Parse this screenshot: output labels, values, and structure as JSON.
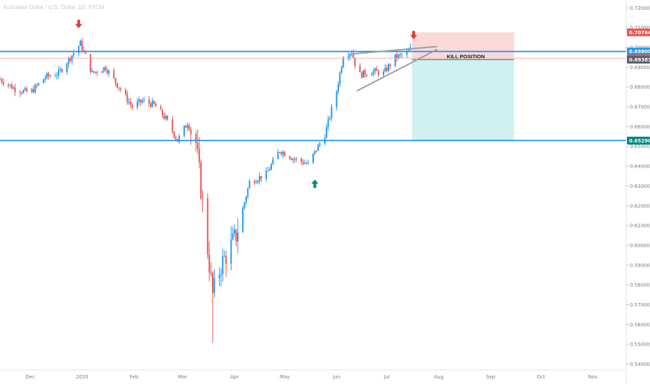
{
  "title": "Australian Dollar / U.S. Dollar, 1D, FXCM",
  "colors": {
    "up": "#2196f3",
    "down": "#ef5350",
    "hline": "#2196f3",
    "stop_zone": "#fbd5d5",
    "target_zone": "#cceeee",
    "entry_line": "#f29b8f",
    "wedge": "#9e9e9e",
    "arrow_down": "#e53935",
    "arrow_up": "#00897b",
    "axis_text": "#787b86"
  },
  "chart_data": {
    "type": "candlestick",
    "symbol": "AUDUSD",
    "ylim": [
      0.537,
      0.724
    ],
    "y_ticks": [
      "0.72000",
      "0.71000",
      "0.70000",
      "0.69000",
      "0.68000",
      "0.67000",
      "0.66000",
      "0.65000",
      "0.64000",
      "0.63000",
      "0.62000",
      "0.61000",
      "0.60000",
      "0.59000",
      "0.58000",
      "0.57000",
      "0.56000",
      "0.55000",
      "0.54000"
    ],
    "x_ticks": [
      "Dec",
      "2020",
      "Feb",
      "Mar",
      "Apr",
      "May",
      "Jun",
      "Jul",
      "Aug",
      "Sep",
      "Oct",
      "Nov"
    ],
    "x_tick_dates": [
      "2019-12-01",
      "2020-01-01",
      "2020-02-01",
      "2020-03-01",
      "2020-04-01",
      "2020-05-01",
      "2020-06-01",
      "2020-07-01",
      "2020-08-01",
      "2020-09-01",
      "2020-10-01",
      "2020-11-01"
    ],
    "x_range": [
      "2019-11-13",
      "2020-11-21"
    ],
    "price_path": [
      [
        "2019-11-13",
        0.684
      ],
      [
        "2019-11-22",
        0.679
      ],
      [
        "2019-12-01",
        0.677
      ],
      [
        "2019-12-10",
        0.685
      ],
      [
        "2019-12-18",
        0.687
      ],
      [
        "2019-12-31",
        0.702
      ],
      [
        "2020-01-07",
        0.687
      ],
      [
        "2020-01-15",
        0.69
      ],
      [
        "2020-01-31",
        0.67
      ],
      [
        "2020-02-06",
        0.673
      ],
      [
        "2020-02-13",
        0.671
      ],
      [
        "2020-02-20",
        0.664
      ],
      [
        "2020-02-27",
        0.653
      ],
      [
        "2020-03-04",
        0.662
      ],
      [
        "2020-03-09",
        0.652
      ],
      [
        "2020-03-13",
        0.621
      ],
      [
        "2020-03-19",
        0.575
      ],
      [
        "2020-03-24",
        0.59
      ],
      [
        "2020-04-02",
        0.605
      ],
      [
        "2020-04-10",
        0.632
      ],
      [
        "2020-04-20",
        0.636
      ],
      [
        "2020-04-28",
        0.648
      ],
      [
        "2020-05-06",
        0.644
      ],
      [
        "2020-05-15",
        0.641
      ],
      [
        "2020-05-25",
        0.656
      ],
      [
        "2020-06-01",
        0.678
      ],
      [
        "2020-06-05",
        0.696
      ],
      [
        "2020-06-10",
        0.698
      ],
      [
        "2020-06-14",
        0.686
      ],
      [
        "2020-06-22",
        0.688
      ],
      [
        "2020-06-29",
        0.687
      ],
      [
        "2020-07-06",
        0.695
      ],
      [
        "2020-07-13",
        0.697
      ],
      [
        "2020-07-15",
        0.699
      ]
    ],
    "key_levels": [
      {
        "label": "0.69800",
        "value": 0.698,
        "color": "#2196f3"
      },
      {
        "label": "0.65300",
        "value": 0.653,
        "color": "#2196f3"
      }
    ],
    "position": {
      "direction": "short",
      "start": "2020-07-16",
      "end": "2020-09-15",
      "stop": 0.70764,
      "entry": 0.69462,
      "target": 0.6529,
      "kill_level": 0.69383,
      "annotation": "KILL POSITION"
    },
    "price_tags": [
      {
        "label": "0.70764",
        "value": 0.70764,
        "color": "#ef5350"
      },
      {
        "label": "0.69800",
        "value": 0.698,
        "color": "#2196f3"
      },
      {
        "label": "0.69462",
        "value": 0.69462,
        "color": "#ef5350"
      },
      {
        "label": "0.69383",
        "value": 0.69383,
        "color": "#5d606b"
      },
      {
        "label": "0.65300",
        "value": 0.653,
        "color": "#2196f3"
      },
      {
        "label": "0.65290",
        "value": 0.6529,
        "color": "#00897b"
      }
    ],
    "wedge_lines": [
      {
        "from": [
          "2020-06-11",
          0.6968
        ],
        "to": [
          "2020-07-31",
          0.7005
        ]
      },
      {
        "from": [
          "2020-06-13",
          0.678
        ],
        "to": [
          "2020-07-31",
          0.699
        ]
      }
    ],
    "arrows": [
      {
        "direction": "down",
        "date": "2019-12-30",
        "price": 0.7115
      },
      {
        "direction": "down",
        "date": "2020-07-17",
        "price": 0.7059
      },
      {
        "direction": "up",
        "date": "2020-05-19",
        "price": 0.6315
      }
    ]
  }
}
